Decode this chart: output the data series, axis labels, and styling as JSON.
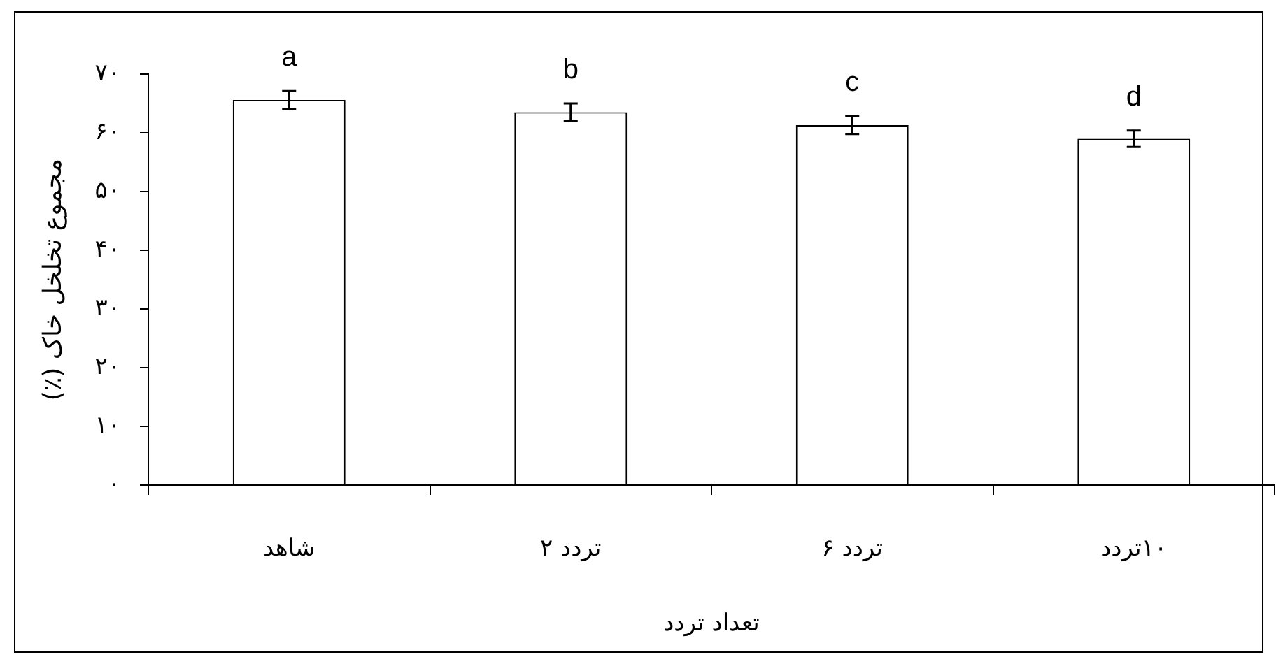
{
  "chart_data": {
    "type": "bar",
    "xlabel": "تعداد تردد",
    "ylabel": "مجموع تخلخل خاک (٪)",
    "categories": [
      "شاهد",
      "تردد ۲",
      "تردد ۶",
      "۱۰تردد"
    ],
    "values": [
      65.6,
      63.5,
      61.3,
      59.0
    ],
    "errors": [
      1.5,
      1.5,
      1.5,
      1.4
    ],
    "color": "#ffffff",
    "ylim": [
      0,
      70
    ],
    "yticks": [
      {
        "value": 0,
        "label": "۰"
      },
      {
        "value": 10,
        "label": "۱۰"
      },
      {
        "value": 20,
        "label": "۲۰"
      },
      {
        "value": 30,
        "label": "۳۰"
      },
      {
        "value": 40,
        "label": "۴۰"
      },
      {
        "value": 50,
        "label": "۵۰"
      },
      {
        "value": 60,
        "label": "۶۰"
      },
      {
        "value": 70,
        "label": "۷۰"
      }
    ],
    "grid": false,
    "legend": false,
    "annotations": [
      {
        "text": "a",
        "x": "شاهد",
        "y": 67.1
      },
      {
        "text": "b",
        "x": "تردد ۲",
        "y": 65.0
      },
      {
        "text": "c",
        "x": "تردد ۶",
        "y": 62.8
      },
      {
        "text": "d",
        "x": "۱۰تردد",
        "y": 60.4
      }
    ]
  }
}
